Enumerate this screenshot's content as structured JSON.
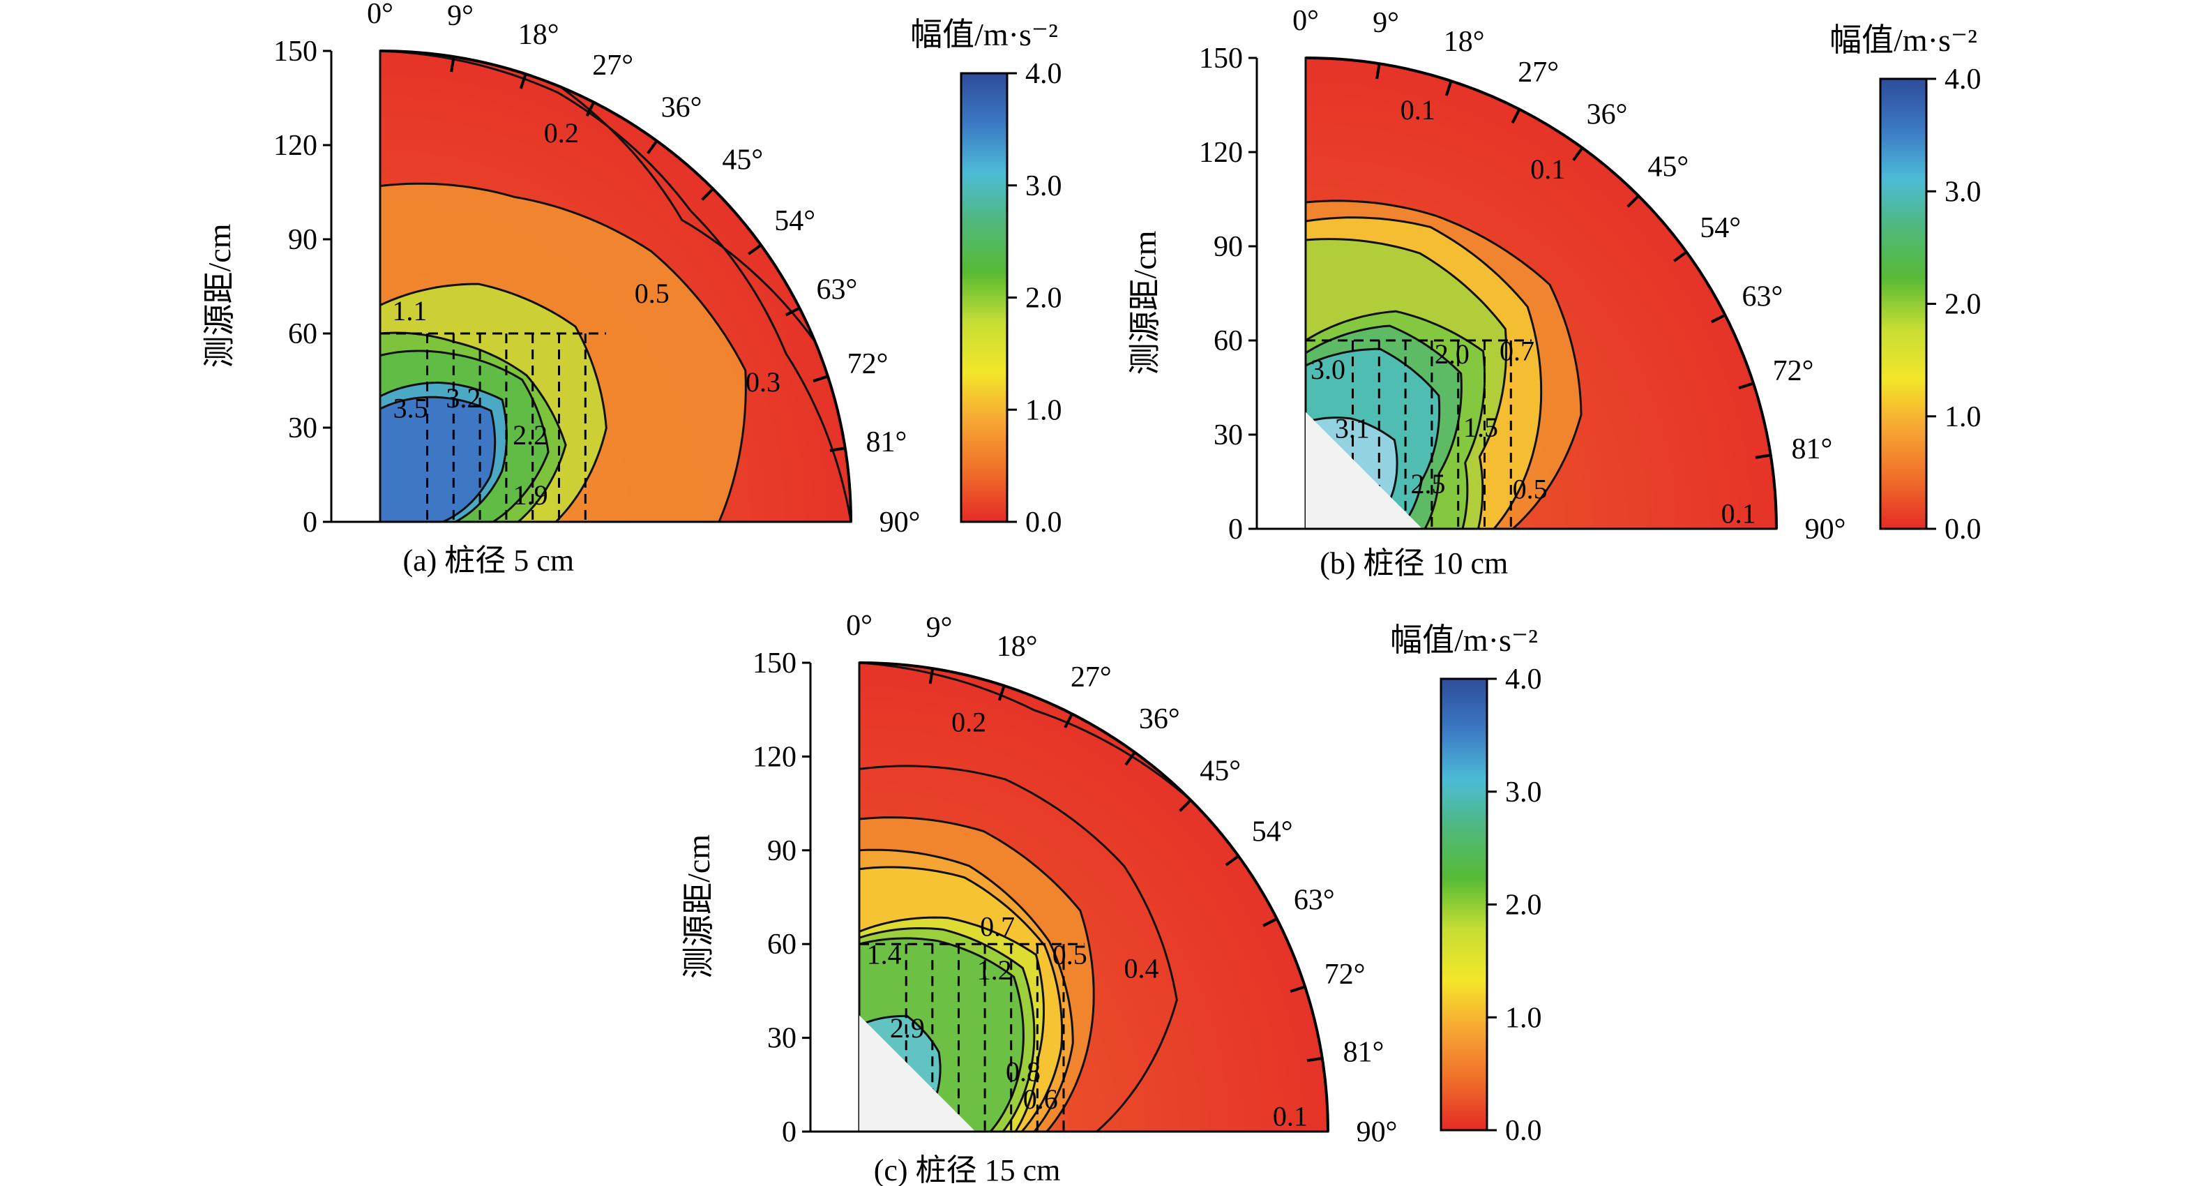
{
  "figure": {
    "colorbar_title": "幅值/m·s⁻²",
    "ylabel": "测源距/cm",
    "colorbar_ticks": [
      "0.0",
      "1.0",
      "2.0",
      "3.0",
      "4.0"
    ],
    "colorbar_colors": [
      "#e52b26",
      "#f06e2a",
      "#f7a534",
      "#f3e629",
      "#c7de34",
      "#58bb34",
      "#4fb87a",
      "#4dbbd7",
      "#3b78c4",
      "#2e4c9c"
    ]
  },
  "chart_data": [
    {
      "type": "heatmap",
      "panel": "a",
      "caption": "(a) 桩径 5 cm",
      "radial_axis": {
        "label": "测源距/cm",
        "range": [
          0,
          150
        ],
        "ticks": [
          0,
          30,
          60,
          90,
          120,
          150
        ]
      },
      "angular_axis": {
        "unit": "deg",
        "range": [
          0,
          90
        ],
        "ticks": [
          0,
          9,
          18,
          27,
          36,
          45,
          54,
          63,
          72,
          81,
          90
        ]
      },
      "colorbar": {
        "label": "幅值/m·s⁻²",
        "range": [
          0.0,
          4.0
        ],
        "ticks": [
          0.0,
          1.0,
          2.0,
          3.0,
          4.0
        ]
      },
      "contours": [
        {
          "level": 3.5,
          "r": [
            36,
            43,
            50,
            38,
            20
          ],
          "label": "3.5"
        },
        {
          "level": 3.2,
          "r": [
            40,
            48,
            55,
            42,
            24
          ],
          "label": "3.2"
        },
        {
          "level": 2.2,
          "r": [
            53,
            58,
            64,
            58,
            36
          ],
          "label": "2.2"
        },
        {
          "level": 1.9,
          "r": [
            60,
            62,
            66,
            64,
            44
          ],
          "label": "1.9"
        },
        {
          "level": 1.1,
          "r": [
            69,
            82,
            88,
            78,
            56
          ],
          "label": "1.1"
        },
        {
          "level": 0.5,
          "r": [
            107,
            112,
            122,
            126,
            108
          ],
          "label": "0.5"
        },
        {
          "level": 0.3,
          "r": [
            150,
            148,
            140,
            140,
            150
          ],
          "label": "0.3"
        },
        {
          "level": 0.2,
          "r": [
            150,
            150,
            136,
            150,
            150
          ],
          "label": "0.2"
        }
      ],
      "contour_labels": [
        "3.5",
        "3.2",
        "2.2",
        "1.9",
        "1.1",
        "0.5",
        "0.2",
        "0.3"
      ]
    },
    {
      "type": "heatmap",
      "panel": "b",
      "caption": "(b) 桩径 10 cm",
      "radial_axis": {
        "label": "测源距/cm",
        "range": [
          0,
          150
        ],
        "ticks": [
          0,
          30,
          60,
          90,
          120,
          150
        ]
      },
      "angular_axis": {
        "unit": "deg",
        "range": [
          0,
          90
        ],
        "ticks": [
          0,
          9,
          18,
          27,
          36,
          45,
          54,
          63,
          72,
          81,
          90
        ]
      },
      "colorbar": {
        "label": "幅值/m·s⁻²",
        "range": [
          0.0,
          4.0
        ],
        "ticks": [
          0.0,
          1.0,
          2.0,
          3.0,
          4.0
        ]
      },
      "contours": [
        {
          "level": 3.1,
          "r": [
            34,
            38,
            40,
            30,
            20
          ],
          "label": "3.1"
        },
        {
          "level": 3.0,
          "r": [
            52,
            62,
            60,
            40,
            30
          ],
          "label": "3.0"
        },
        {
          "level": 2.5,
          "r": [
            56,
            70,
            70,
            46,
            38
          ],
          "label": "2.5"
        },
        {
          "level": 2.0,
          "r": [
            60,
            75,
            80,
            55,
            50
          ],
          "label": "2.0"
        },
        {
          "level": 1.5,
          "r": [
            92,
            95,
            90,
            60,
            55
          ],
          "label": "1.5"
        },
        {
          "level": 0.7,
          "r": [
            98,
            104,
            100,
            80,
            60
          ],
          "label": "0.7"
        },
        {
          "level": 0.5,
          "r": [
            104,
            108,
            110,
            95,
            66
          ],
          "label": "0.5"
        },
        {
          "level": 0.1,
          "r": [
            150,
            150,
            150,
            150,
            150
          ],
          "label": "0.1"
        }
      ],
      "contour_labels": [
        "0.1",
        "0.1",
        "1.5",
        "0.5",
        "3.0",
        "0.7",
        "3.1",
        "2.5",
        "2.0",
        "0.1"
      ]
    },
    {
      "type": "heatmap",
      "panel": "c",
      "caption": "(c) 桩径 15 cm",
      "radial_axis": {
        "label": "测源距/cm",
        "range": [
          0,
          150
        ],
        "ticks": [
          0,
          30,
          60,
          90,
          120,
          150
        ]
      },
      "angular_axis": {
        "unit": "deg",
        "range": [
          0,
          90
        ],
        "ticks": [
          0,
          9,
          18,
          27,
          36,
          45,
          54,
          63,
          72,
          81,
          90
        ]
      },
      "colorbar": {
        "label": "幅值/m·s⁻²",
        "range": [
          0.0,
          4.0
        ],
        "ticks": [
          0.0,
          1.0,
          2.0,
          3.0,
          4.0
        ]
      },
      "contours": [
        {
          "level": 2.9,
          "r": [
            34,
            40,
            36,
            26,
            16
          ],
          "label": "2.9"
        },
        {
          "level": 1.4,
          "r": [
            60,
            66,
            70,
            56,
            42
          ],
          "label": "1.4"
        },
        {
          "level": 1.2,
          "r": [
            62,
            70,
            74,
            60,
            46
          ],
          "label": "1.2"
        },
        {
          "level": 0.8,
          "r": [
            64,
            74,
            80,
            62,
            50
          ],
          "label": "0.8"
        },
        {
          "level": 0.7,
          "r": [
            84,
            88,
            84,
            70,
            52
          ],
          "label": "0.7"
        },
        {
          "level": 0.6,
          "r": [
            90,
            92,
            86,
            74,
            56
          ],
          "label": "0.6"
        },
        {
          "level": 0.5,
          "r": [
            100,
            104,
            100,
            80,
            60
          ],
          "label": "0.5"
        },
        {
          "level": 0.4,
          "r": [
            116,
            122,
            120,
            110,
            76
          ],
          "label": "0.4"
        },
        {
          "level": 0.2,
          "r": [
            150,
            146,
            150,
            150,
            150
          ],
          "label": "0.2"
        },
        {
          "level": 0.1,
          "r": [
            150,
            150,
            150,
            150,
            150
          ],
          "label": "0.1"
        }
      ],
      "contour_labels": [
        "0.2",
        "0.7",
        "0.4",
        "0.6",
        "1.4",
        "0.5",
        "2.9",
        "0.8",
        "1.2",
        "0.1"
      ]
    }
  ]
}
